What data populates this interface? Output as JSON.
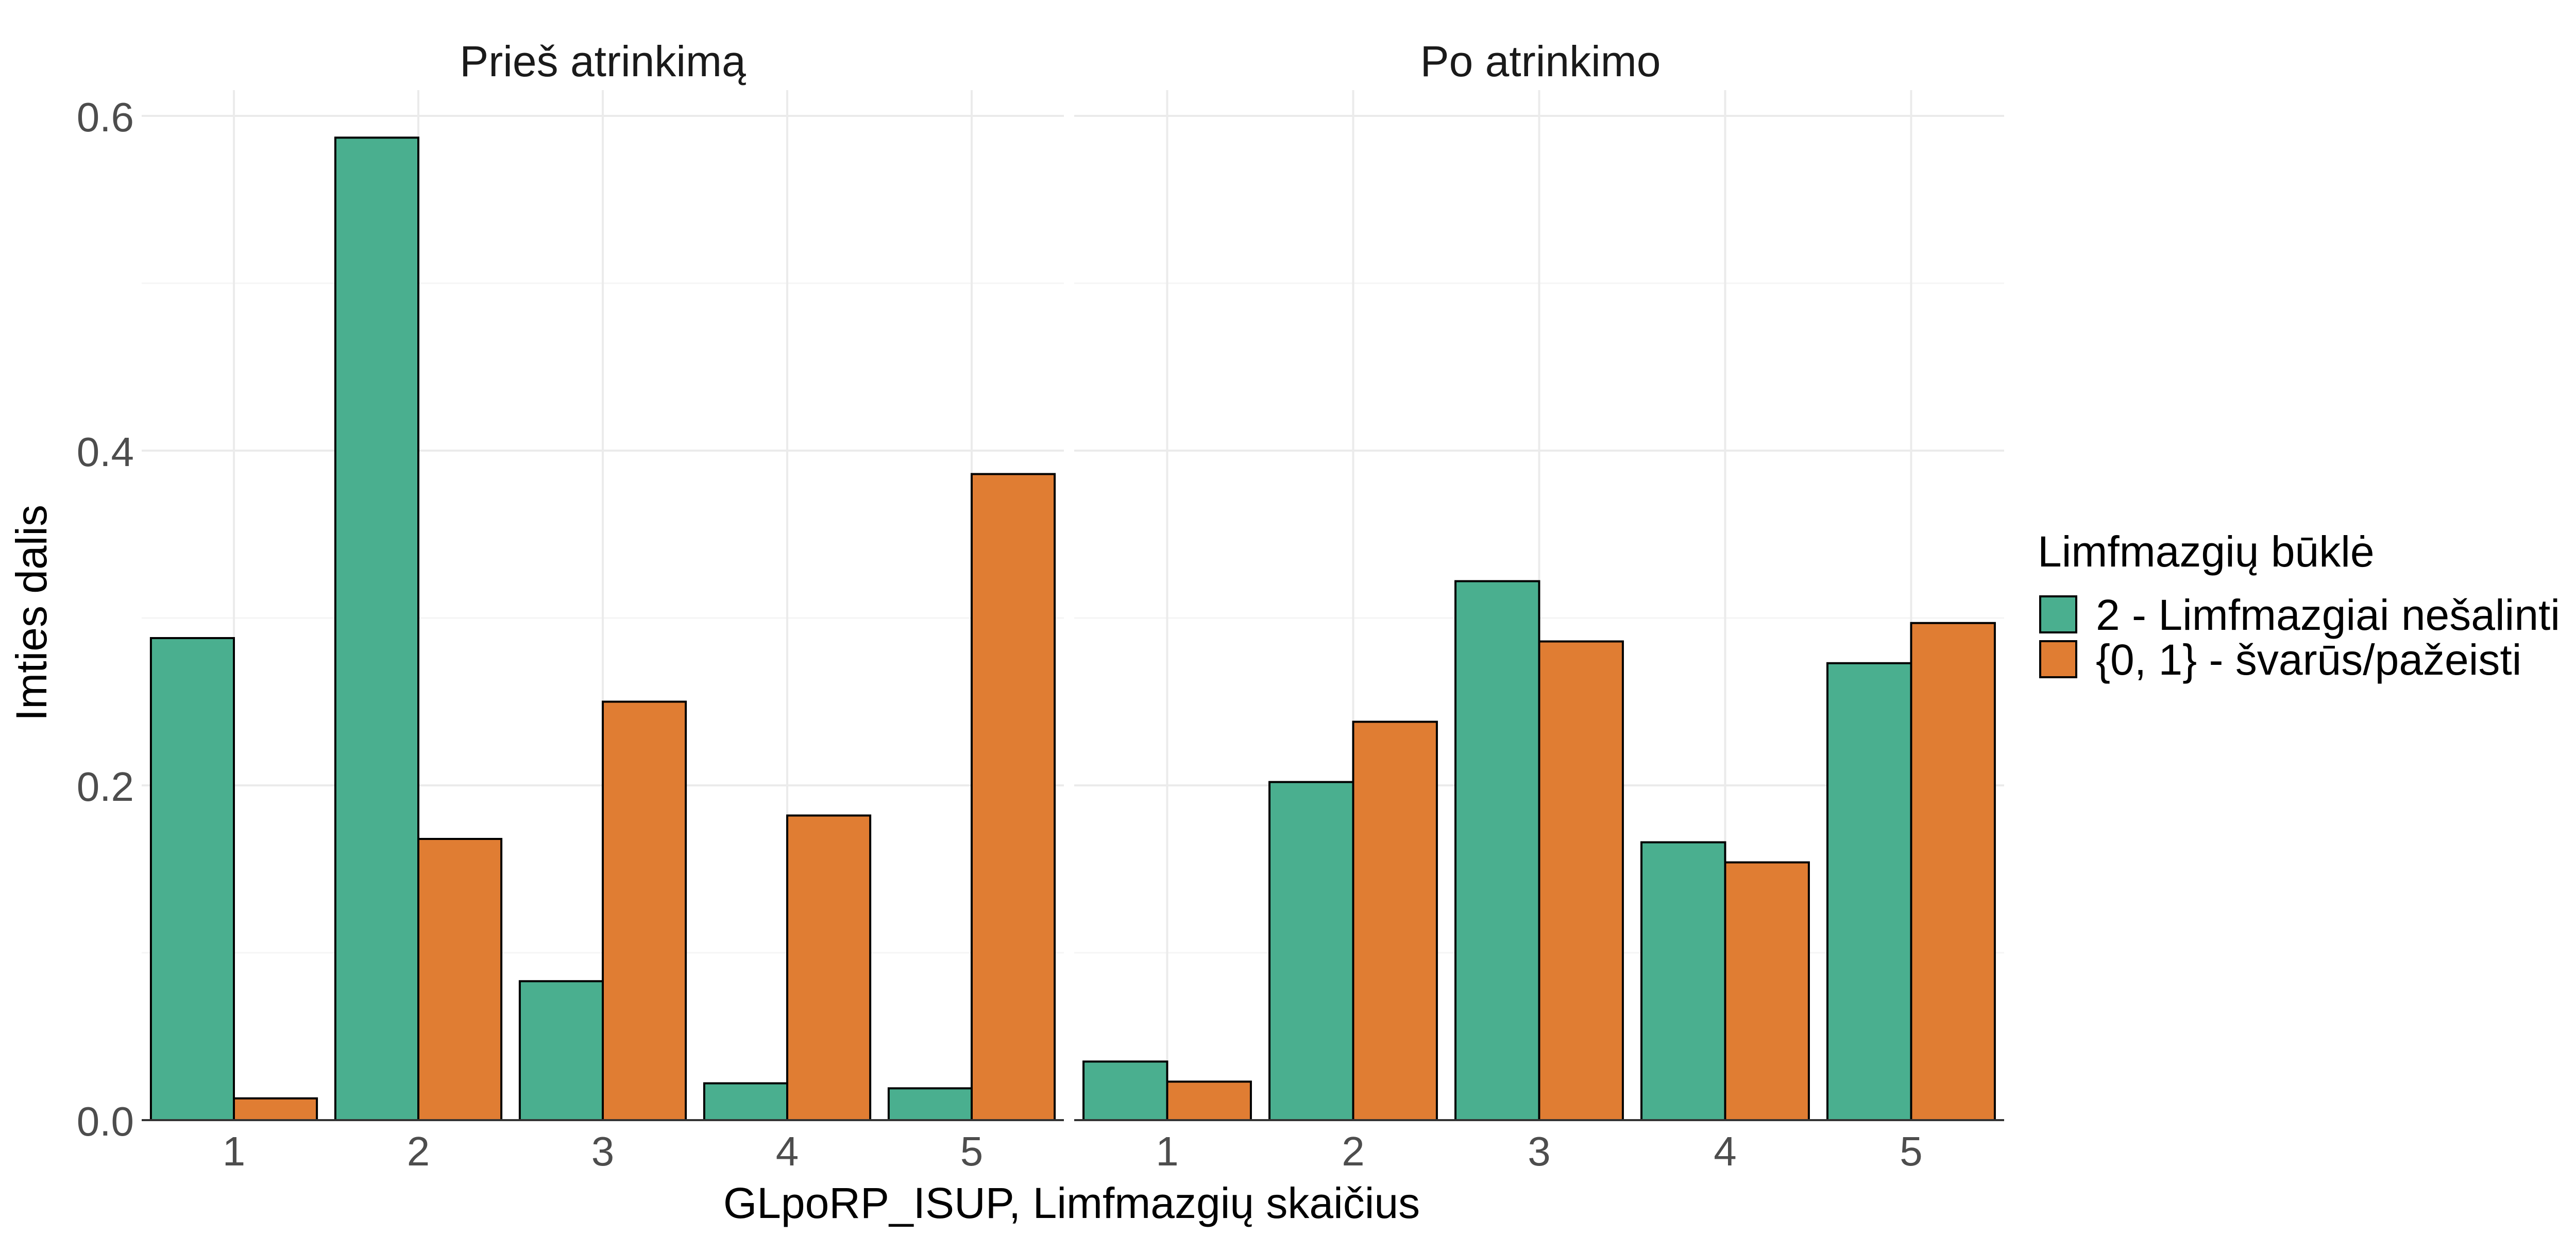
{
  "chart_data": {
    "type": "bar",
    "xlabel": "GLpoRP_ISUP, Limfmazgių skaičius",
    "ylabel": "Imties dalis",
    "ylim": [
      0,
      0.62
    ],
    "y_ticks": [
      "0.0",
      "0.2",
      "0.4",
      "0.6"
    ],
    "categories": [
      "1",
      "2",
      "3",
      "4",
      "5"
    ],
    "grid": true,
    "legend": {
      "title": "Limfmazgių būklė",
      "placement": "right"
    },
    "series_colors": [
      "#4aaf8f",
      "#e07d33"
    ],
    "facets": [
      {
        "title": "Prieš atrinkimą",
        "series": [
          {
            "name": "2 - Limfmazgiai nešalinti",
            "values": [
              0.288,
              0.587,
              0.083,
              0.022,
              0.019
            ]
          },
          {
            "name": "{0, 1} - švarūs/pažeisti",
            "values": [
              0.013,
              0.168,
              0.25,
              0.182,
              0.386
            ]
          }
        ]
      },
      {
        "title": "Po atrinkimo",
        "series": [
          {
            "name": "2 - Limfmazgiai nešalinti",
            "values": [
              0.035,
              0.202,
              0.322,
              0.166,
              0.273
            ]
          },
          {
            "name": "{0, 1} - švarūs/pažeisti",
            "values": [
              0.023,
              0.238,
              0.286,
              0.154,
              0.297
            ]
          }
        ]
      }
    ]
  }
}
